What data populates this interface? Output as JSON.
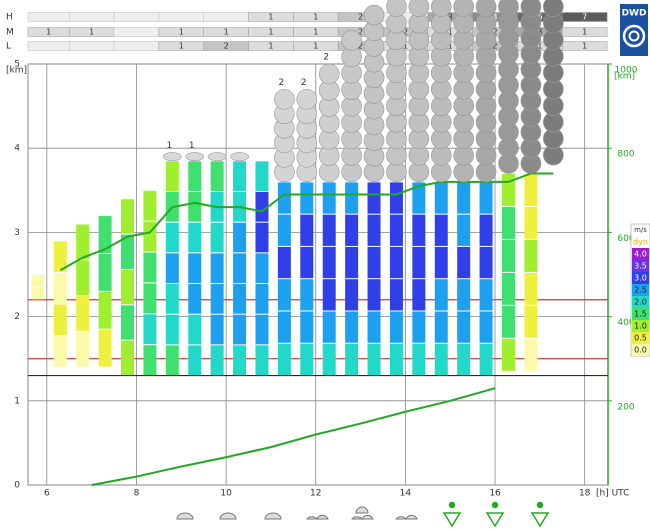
{
  "chart_data": {
    "type": "meteogram",
    "logo": "DWD",
    "y_unit": "[km]",
    "y2_unit": "[km]",
    "x_unit": "[h] UTC",
    "xlim": [
      5.58,
      18.52
    ],
    "xticks": [
      6,
      8,
      10,
      12,
      14,
      16,
      18
    ],
    "ylim": [
      0,
      5
    ],
    "yticks": [
      0,
      1,
      2,
      3,
      4,
      5
    ],
    "y2lim": [
      0,
      1000
    ],
    "y2ticks": [
      200,
      400,
      600,
      800,
      1000
    ],
    "y2_color": "#22aa22",
    "grid": true,
    "cover": {
      "x": [
        6,
        7,
        8,
        9,
        10,
        11,
        12,
        13,
        14,
        15,
        16,
        17,
        18
      ],
      "colors": [
        "#e4e4e4",
        "#dcdcdc",
        "#c4c4c4",
        "#a8a8a8",
        "#8c8c8c",
        "#7a7a7a",
        "#6c6c6c",
        "#5c5c5c",
        "#4a4a4a"
      ],
      "rows": [
        {
          "name": "H",
          "values": [
            null,
            null,
            null,
            null,
            null,
            1,
            1,
            2,
            null,
            3,
            4,
            6,
            7
          ]
        },
        {
          "name": "M",
          "values": [
            1,
            1,
            null,
            1,
            1,
            1,
            1,
            2,
            2,
            1,
            2,
            3,
            1
          ]
        },
        {
          "name": "L",
          "values": [
            null,
            null,
            null,
            1,
            2,
            1,
            1,
            2,
            1,
            1,
            2,
            1,
            1
          ]
        }
      ]
    },
    "speed_title": "m/s",
    "dyn_label": "dyn",
    "dyn_color": "#f0a800",
    "speed_classes": [
      {
        "value": 4,
        "label": "4.0",
        "color": "#9a1ed0"
      },
      {
        "value": 3.5,
        "label": "3.5",
        "color": "#6a35e0"
      },
      {
        "value": 3,
        "label": "3.0",
        "color": "#3040e8"
      },
      {
        "value": 2.5,
        "label": "2.5",
        "color": "#1ea0f0"
      },
      {
        "value": 2,
        "label": "2.0",
        "color": "#22d8c8"
      },
      {
        "value": 1.5,
        "label": "1.5",
        "color": "#40e070"
      },
      {
        "value": 1,
        "label": "1.0",
        "color": "#a0ee30"
      },
      {
        "value": 0.5,
        "label": "0.5",
        "color": "#eef040"
      },
      {
        "value": 0,
        "label": "0.0",
        "color": "#fafaa8"
      }
    ],
    "columns": [
      {
        "t": 5.8,
        "bottom": 2.2,
        "top": 2.5,
        "speeds": [
          0,
          0
        ]
      },
      {
        "t": 6.3,
        "bottom": 1.4,
        "top": 2.9,
        "speeds": [
          0,
          0.5,
          0,
          0.5
        ]
      },
      {
        "t": 6.8,
        "bottom": 1.4,
        "top": 3.1,
        "speeds": [
          0,
          0.5,
          1,
          1
        ]
      },
      {
        "t": 7.3,
        "bottom": 1.4,
        "top": 3.2,
        "speeds": [
          0.5,
          1,
          1.5,
          1.5
        ]
      },
      {
        "t": 7.8,
        "bottom": 1.3,
        "top": 3.4,
        "speeds": [
          1,
          1.5,
          1,
          1.5,
          1
        ]
      },
      {
        "t": 8.3,
        "bottom": 1.3,
        "top": 3.5,
        "speeds": [
          1.5,
          2,
          1.5,
          1.5,
          1,
          1
        ]
      },
      {
        "t": 8.8,
        "bottom": 1.3,
        "top": 3.85,
        "speeds": [
          1.5,
          2,
          2,
          2.5,
          2,
          1.5,
          1
        ],
        "cloud_top": 3.95,
        "cloud_color": "#d8d8d8",
        "label": 1
      },
      {
        "t": 9.3,
        "bottom": 1.3,
        "top": 3.85,
        "speeds": [
          2,
          2,
          2.5,
          2.5,
          2,
          1.5,
          1.5
        ],
        "cloud_top": 3.95,
        "cloud_color": "#d8d8d8",
        "label": 1
      },
      {
        "t": 9.8,
        "bottom": 1.3,
        "top": 3.85,
        "speeds": [
          2,
          2.5,
          2.5,
          2.5,
          2,
          2,
          1.5
        ],
        "cloud_top": 3.95,
        "cloud_color": "#d8d8d8"
      },
      {
        "t": 10.3,
        "bottom": 1.3,
        "top": 3.85,
        "speeds": [
          2,
          2.5,
          2.5,
          2.5,
          2.5,
          2,
          2
        ],
        "cloud_top": 3.95,
        "cloud_color": "#d8d8d8"
      },
      {
        "t": 10.8,
        "bottom": 1.3,
        "top": 3.85,
        "speeds": [
          2,
          2.5,
          2.5,
          2.5,
          3,
          3,
          2
        ]
      },
      {
        "t": 11.3,
        "bottom": 1.3,
        "top": 3.6,
        "speeds": [
          2,
          2.5,
          2.5,
          3,
          2.5,
          2.5
        ],
        "cloud_top": 4.7,
        "cloud_color": "#d4d4d4",
        "label": 2
      },
      {
        "t": 11.8,
        "bottom": 1.3,
        "top": 3.6,
        "speeds": [
          2,
          2.5,
          2.5,
          3,
          3,
          2.5
        ],
        "cloud_top": 4.7,
        "cloud_color": "#d4d4d4",
        "label": 2
      },
      {
        "t": 12.3,
        "bottom": 1.3,
        "top": 3.6,
        "speeds": [
          2,
          2.5,
          3,
          3,
          3,
          2.5
        ],
        "cloud_top": 5.0,
        "cloud_color": "#cfcfcf",
        "label": 2
      },
      {
        "t": 12.8,
        "bottom": 1.3,
        "top": 3.6,
        "speeds": [
          2,
          2.5,
          3,
          3,
          3,
          2.5
        ],
        "cloud_top": 5.4,
        "cloud_color": "#c8c8c8"
      },
      {
        "t": 13.3,
        "bottom": 1.3,
        "top": 3.6,
        "speeds": [
          2,
          2.5,
          3,
          3,
          3,
          3
        ],
        "cloud_top": 5.7,
        "cloud_color": "#c4c4c4"
      },
      {
        "t": 13.8,
        "bottom": 1.3,
        "top": 3.6,
        "speeds": [
          2,
          2.5,
          3,
          3,
          3,
          3
        ],
        "cloud_top": 5.8,
        "cloud_color": "#c4c4c4"
      },
      {
        "t": 14.3,
        "bottom": 1.3,
        "top": 3.6,
        "speeds": [
          2,
          2.5,
          3,
          3,
          3,
          2.5
        ],
        "cloud_top": 5.8,
        "cloud_color": "#c0c0c0"
      },
      {
        "t": 14.8,
        "bottom": 1.3,
        "top": 3.6,
        "speeds": [
          2,
          2.5,
          2.5,
          3,
          3,
          2.5
        ],
        "cloud_top": 5.8,
        "cloud_color": "#bcbcbc"
      },
      {
        "t": 15.3,
        "bottom": 1.3,
        "top": 3.6,
        "speeds": [
          2,
          2.5,
          2.5,
          3,
          2.5,
          2.5
        ],
        "cloud_top": 5.8,
        "cloud_color": "#b4b4b4"
      },
      {
        "t": 15.8,
        "bottom": 1.3,
        "top": 3.6,
        "speeds": [
          2,
          2.5,
          2.5,
          3,
          3,
          2.5
        ],
        "cloud_top": 5.8,
        "cloud_color": "#a8a8a8"
      },
      {
        "t": 16.3,
        "bottom": 1.35,
        "top": 3.7,
        "speeds": [
          1,
          1.5,
          1.5,
          1.5,
          1.5,
          1
        ],
        "cloud_top": 5.8,
        "cloud_color": "#999999"
      },
      {
        "t": 16.8,
        "bottom": 1.35,
        "top": 3.7,
        "speeds": [
          0,
          0.5,
          0.5,
          1,
          0.5,
          0.5
        ],
        "cloud_top": 5.8,
        "cloud_color": "#8a8a8a"
      },
      {
        "t": 17.3,
        "bottom": 3.8,
        "top": 3.8,
        "speeds": [],
        "cloud_top": 5.8,
        "cloud_color": "#7c7c7c"
      }
    ],
    "reference_lines": [
      {
        "value": 1.3,
        "color": "#8b0000"
      },
      {
        "value": 1.5,
        "color": "#e03030"
      },
      {
        "value": 2.2,
        "color": "#e03030"
      }
    ],
    "lines": [
      {
        "color": "#22aa22",
        "x": [
          6.3,
          6.8,
          7.3,
          7.8,
          8.3,
          8.8,
          9.3,
          9.8,
          10.3,
          10.8,
          11.3,
          11.8,
          12.3,
          12.8,
          13.3,
          13.8,
          14.3,
          14.8,
          15.3,
          15.8,
          16.3,
          16.8,
          17.3
        ],
        "values": [
          2.55,
          2.7,
          2.8,
          2.95,
          3.0,
          3.3,
          3.35,
          3.3,
          3.3,
          3.25,
          3.45,
          3.45,
          3.45,
          3.45,
          3.45,
          3.45,
          3.55,
          3.6,
          3.6,
          3.6,
          3.6,
          3.7,
          3.7
        ]
      },
      {
        "color": "#22aa22",
        "x": [
          7,
          8,
          9,
          10,
          11,
          12,
          13,
          14,
          15,
          16
        ],
        "values": [
          0,
          0.1,
          0.22,
          0.33,
          0.45,
          0.6,
          0.73,
          0.87,
          1.0,
          1.15
        ]
      }
    ]
  }
}
